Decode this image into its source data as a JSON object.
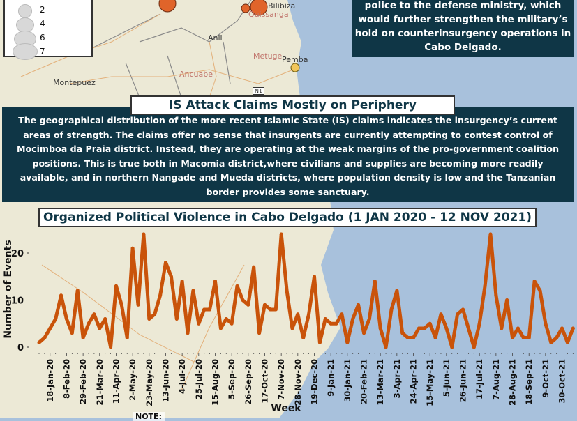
{
  "legend": {
    "sizes": [
      2,
      4,
      6,
      7
    ]
  },
  "map_labels": [
    {
      "text": "Bilibiza",
      "style": "dark"
    },
    {
      "text": "Quissanga",
      "style": "red"
    },
    {
      "text": "Anli",
      "style": "dark"
    },
    {
      "text": "Metuge",
      "style": "red"
    },
    {
      "text": "Pemba",
      "style": "dark"
    },
    {
      "text": "Ancuabe",
      "style": "red"
    },
    {
      "text": "Montepuez",
      "style": "dark"
    },
    {
      "text": "N1",
      "style": "road"
    }
  ],
  "top_box": {
    "text": "police to the defense ministry, which would further strengthen the military’s hold on counterinsurgency operations in Cabo Delgado."
  },
  "mid_box": {
    "title": "IS Attack Claims Mostly on Periphery",
    "text": "The geographical distribution of the more recent Islamic State (IS) claims indicates the insurgency’s current areas of strength. The claims offer no sense that insurgents are currently attempting to contest control of Mocimboa da Praia district. Instead, they are operating at the weak margins of the pro-government coalition positions. This is true both in Macomia district,where civilians and supplies are becoming more readily available, and in northern Nangade and Mueda districts, where population density is low and the Tanzanian border provides some sanctuary."
  },
  "note": {
    "label": "NOTE:"
  },
  "colors": {
    "line": "#c9530a",
    "panel": "#0f3646",
    "land": "#ece9d6",
    "sea": "#a8c1dc",
    "event_marker": "#e0642a",
    "is_marker": "#f2c65a"
  },
  "chart_data": {
    "type": "line",
    "title": "Organized Political Violence in Cabo Delgado (1 JAN 2020 - 12 NOV 2021)",
    "xlabel": "Week",
    "ylabel": "Number of Events",
    "ylim": [
      0,
      24
    ],
    "yticks": [
      0,
      10,
      20
    ],
    "grid": false,
    "x_tick_labels": [
      "18-Jan-20",
      "8-Feb-20",
      "29-Feb-20",
      "21-Mar-20",
      "11-Apr-20",
      "2-May-20",
      "23-May-20",
      "13-Jun-20",
      "4-Jul-20",
      "25-Jul-20",
      "15-Aug-20",
      "5-Sep-20",
      "26-Sep-20",
      "17-Oct-20",
      "7-Nov-20",
      "28-Nov-20",
      "19-Dec-20",
      "9-Jan-21",
      "30-Jan-21",
      "20-Feb-21",
      "13-Mar-21",
      "3-Apr-21",
      "24-Apr-21",
      "15-May-21",
      "5-Jun-21",
      "26-Jun-21",
      "17-Jul-21",
      "7-Aug-21",
      "28-Aug-21",
      "18-Sep-21",
      "9-Oct-21",
      "30-Oct-21"
    ],
    "values": [
      1,
      2,
      4,
      6,
      11,
      6,
      3,
      12,
      2,
      5,
      7,
      4,
      6,
      0,
      13,
      9,
      2,
      21,
      9,
      24,
      6,
      7,
      11,
      18,
      15,
      6,
      14,
      3,
      12,
      5,
      8,
      8,
      14,
      4,
      6,
      5,
      13,
      10,
      9,
      17,
      3,
      9,
      8,
      8,
      24,
      12,
      4,
      7,
      2,
      7,
      15,
      1,
      6,
      5,
      5,
      7,
      1,
      6,
      9,
      3,
      6,
      14,
      4,
      0,
      8,
      12,
      3,
      2,
      2,
      4,
      4,
      5,
      2,
      7,
      4,
      0,
      7,
      8,
      4,
      0,
      5,
      13,
      24,
      11,
      4,
      10,
      2,
      4,
      2,
      2,
      14,
      12,
      5,
      1,
      2,
      4,
      1,
      4
    ]
  }
}
